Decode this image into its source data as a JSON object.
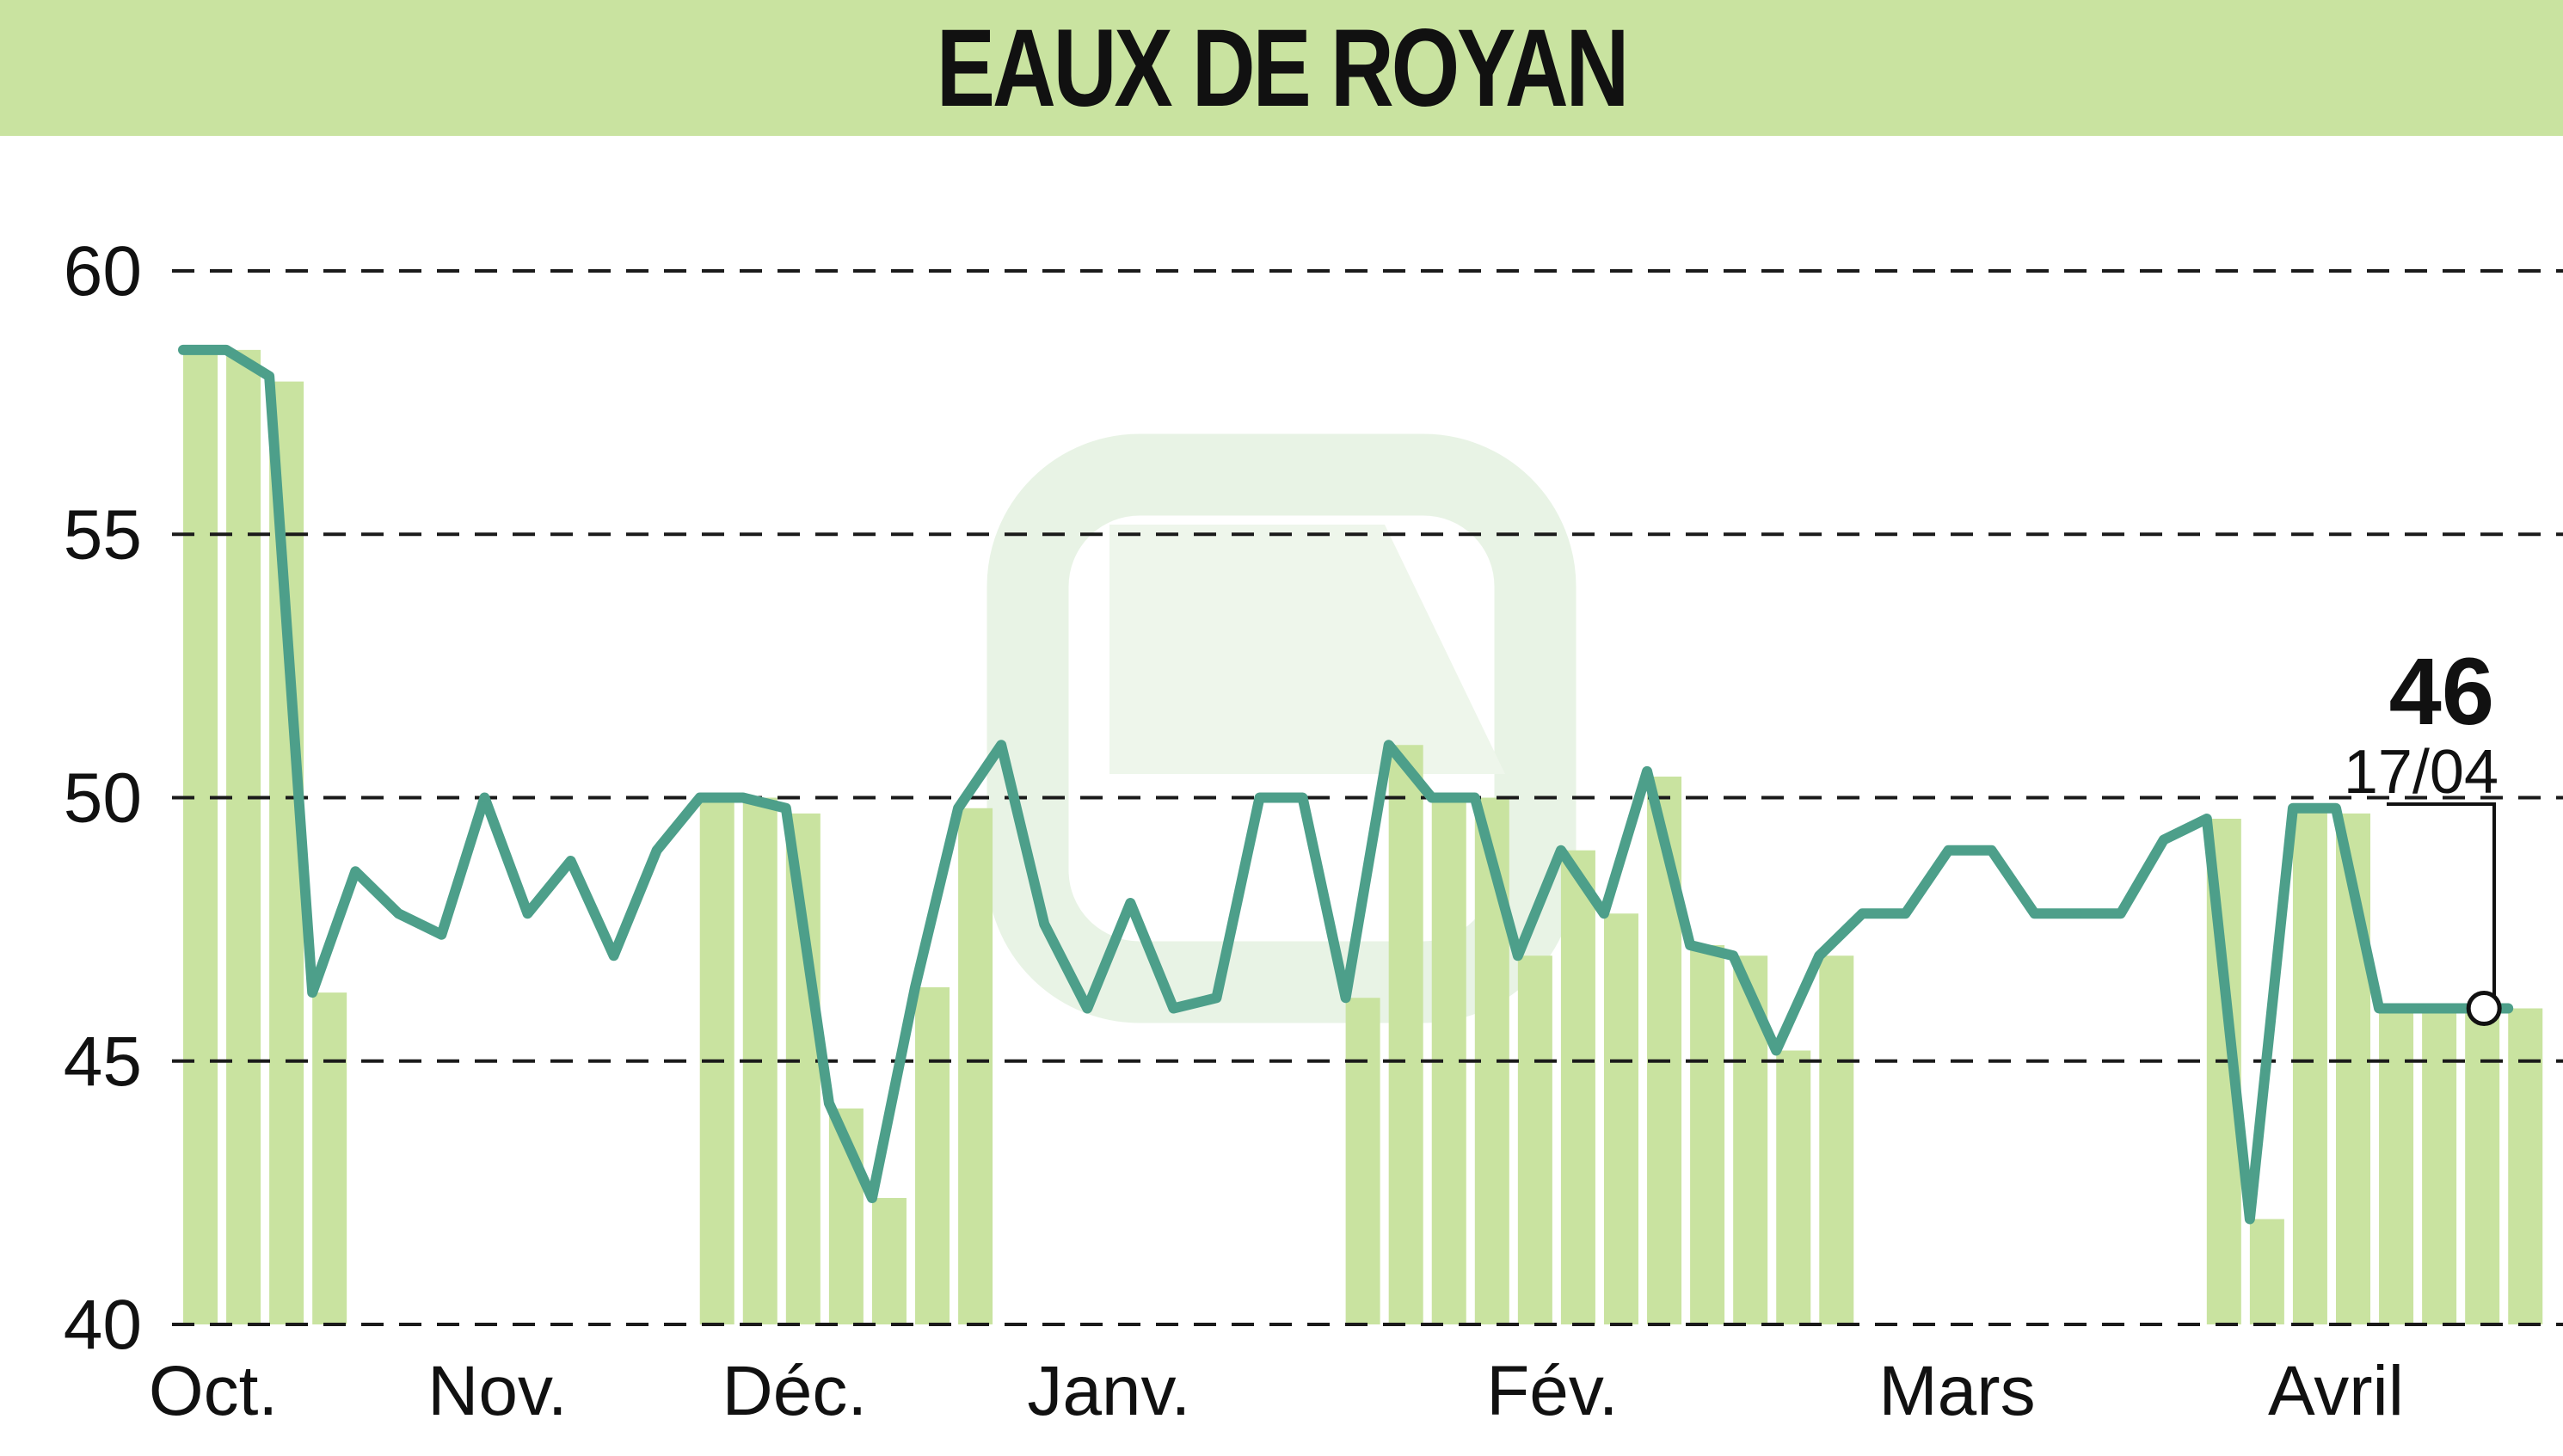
{
  "chart_data": {
    "type": "line",
    "title": "EAUX DE ROYAN",
    "ylim": [
      40,
      60
    ],
    "yticks": [
      "60",
      "55",
      "50",
      "45",
      "40"
    ],
    "xlim": [
      0,
      54
    ],
    "months": [
      {
        "label": "Oct.",
        "x": 0.7
      },
      {
        "label": "Nov.",
        "x": 7.3
      },
      {
        "label": "Déc.",
        "x": 14.2
      },
      {
        "label": "Janv.",
        "x": 21.5
      },
      {
        "label": "Fév.",
        "x": 31.8
      },
      {
        "label": "Mars",
        "x": 41.2
      },
      {
        "label": "Avril",
        "x": 50.0
      }
    ],
    "grid": "horizontal dashed",
    "line_color": "#4d9f8a",
    "bar_color": "#c9e3a0",
    "series": [
      {
        "values": [
          58.5,
          58.5,
          58.0,
          46.3,
          48.6,
          47.8,
          47.4,
          50.0,
          47.8,
          48.8,
          47.0,
          49.0,
          50.0,
          50.0,
          49.8,
          44.2,
          42.4,
          46.4,
          49.8,
          51.0,
          47.6,
          46.0,
          48.0,
          46.0,
          46.2,
          50.0,
          50.0,
          46.2,
          51.0,
          50.0,
          50.0,
          47.0,
          49.0,
          47.8,
          50.5,
          47.2,
          47.0,
          45.2,
          47.0,
          47.8,
          47.8,
          49.0,
          49.0,
          47.8,
          47.8,
          47.8,
          49.2,
          49.6,
          42.0,
          49.8,
          49.8,
          46.0,
          46.0,
          46.0,
          46.0
        ]
      }
    ],
    "volume_bars": [
      {
        "x": 0,
        "top": 58.5
      },
      {
        "x": 1,
        "top": 58.5
      },
      {
        "x": 2,
        "top": 57.9
      },
      {
        "x": 3,
        "top": 46.3
      },
      {
        "x": 12,
        "top": 50.0
      },
      {
        "x": 13,
        "top": 50.0
      },
      {
        "x": 14,
        "top": 49.7
      },
      {
        "x": 15,
        "top": 44.1
      },
      {
        "x": 16,
        "top": 42.4
      },
      {
        "x": 17,
        "top": 46.4
      },
      {
        "x": 18,
        "top": 49.8
      },
      {
        "x": 27,
        "top": 46.2
      },
      {
        "x": 28,
        "top": 51.0
      },
      {
        "x": 29,
        "top": 50.0
      },
      {
        "x": 30,
        "top": 50.0
      },
      {
        "x": 31,
        "top": 47.0
      },
      {
        "x": 32,
        "top": 49.0
      },
      {
        "x": 33,
        "top": 47.8
      },
      {
        "x": 34,
        "top": 50.4
      },
      {
        "x": 35,
        "top": 47.2
      },
      {
        "x": 36,
        "top": 47.0
      },
      {
        "x": 37,
        "top": 45.2
      },
      {
        "x": 38,
        "top": 47.0
      },
      {
        "x": 47,
        "top": 49.6
      },
      {
        "x": 48,
        "top": 42.0
      },
      {
        "x": 49,
        "top": 49.8
      },
      {
        "x": 50,
        "top": 49.7
      },
      {
        "x": 51,
        "top": 46.0
      },
      {
        "x": 52,
        "top": 46.0
      },
      {
        "x": 53,
        "top": 46.0
      },
      {
        "x": 54,
        "top": 46.0
      }
    ],
    "last_point": {
      "value": "46",
      "date": "17/04",
      "x": 53,
      "y": 46.0
    }
  }
}
